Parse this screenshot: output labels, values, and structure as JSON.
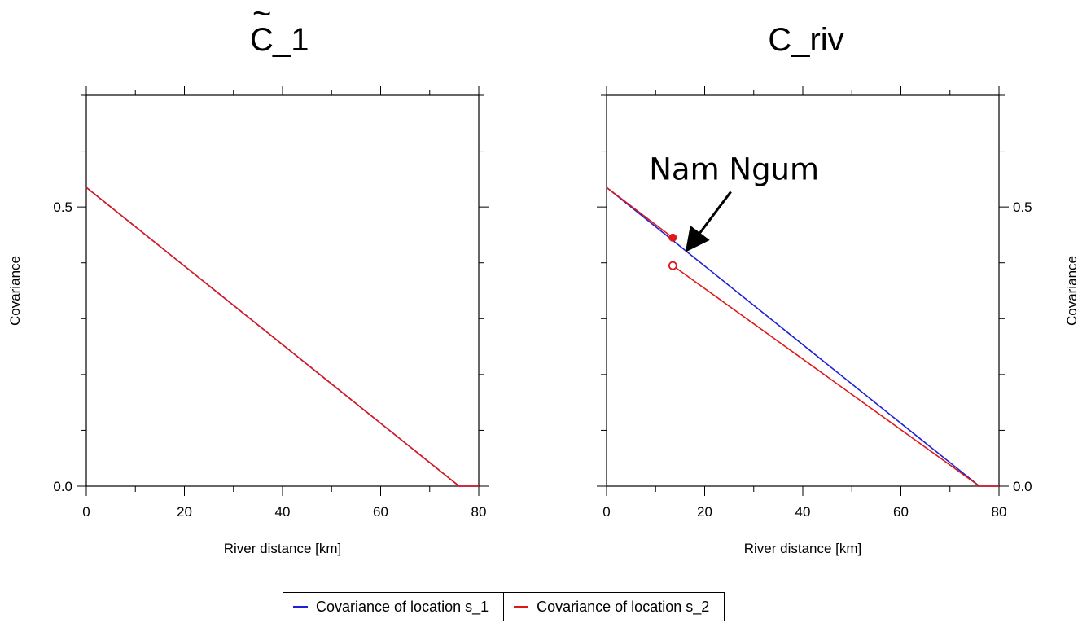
{
  "chart_data": [
    {
      "type": "line",
      "title_main": "C",
      "title_tilde": "~",
      "title_suffix": "_1",
      "xlabel": "River distance [km]",
      "ylabel": "Covariance",
      "xlim": [
        0,
        80
      ],
      "ylim": [
        0,
        0.7
      ],
      "x_ticks": [
        "0",
        "20",
        "40",
        "60",
        "80"
      ],
      "y_ticks": [
        "0.0",
        "0.5"
      ],
      "ylabel_side": "left",
      "grid": false,
      "series": [
        {
          "color": "#1f1fd6",
          "x": [
            0,
            76,
            80
          ],
          "y": [
            0.535,
            0,
            0
          ]
        },
        {
          "color": "#e01818",
          "x": [
            0,
            76,
            80
          ],
          "y": [
            0.535,
            0,
            0
          ]
        }
      ]
    },
    {
      "type": "line",
      "title": "C_riv",
      "xlabel": "River distance [km]",
      "ylabel": "Covariance",
      "xlim": [
        0,
        80
      ],
      "ylim": [
        0,
        0.7
      ],
      "x_ticks": [
        "0",
        "20",
        "40",
        "60",
        "80"
      ],
      "y_ticks": [
        "0.0",
        "0.5"
      ],
      "ylabel_side": "right",
      "grid": false,
      "series": [
        {
          "color": "#1f1fd6",
          "x": [
            0,
            76,
            80
          ],
          "y": [
            0.535,
            0,
            0
          ]
        },
        {
          "color": "#e01818",
          "x": [
            0,
            13.5
          ],
          "y": [
            0.535,
            0.445
          ],
          "end_marker": "filled"
        },
        {
          "color": "#e01818",
          "x": [
            13.5,
            76,
            80
          ],
          "y": [
            0.395,
            0,
            0
          ],
          "start_marker": "open"
        }
      ],
      "annotation": {
        "text": "Nam Ngum",
        "x_from": 26,
        "y_from": 0.52,
        "x_to": 16,
        "y_to": 0.42
      }
    }
  ],
  "legend": {
    "position": "bottom-center",
    "items": [
      {
        "label": "Covariance of location s_1",
        "color": "#1f1fd6"
      },
      {
        "label": "Covariance of location s_2",
        "color": "#e01818"
      }
    ]
  }
}
